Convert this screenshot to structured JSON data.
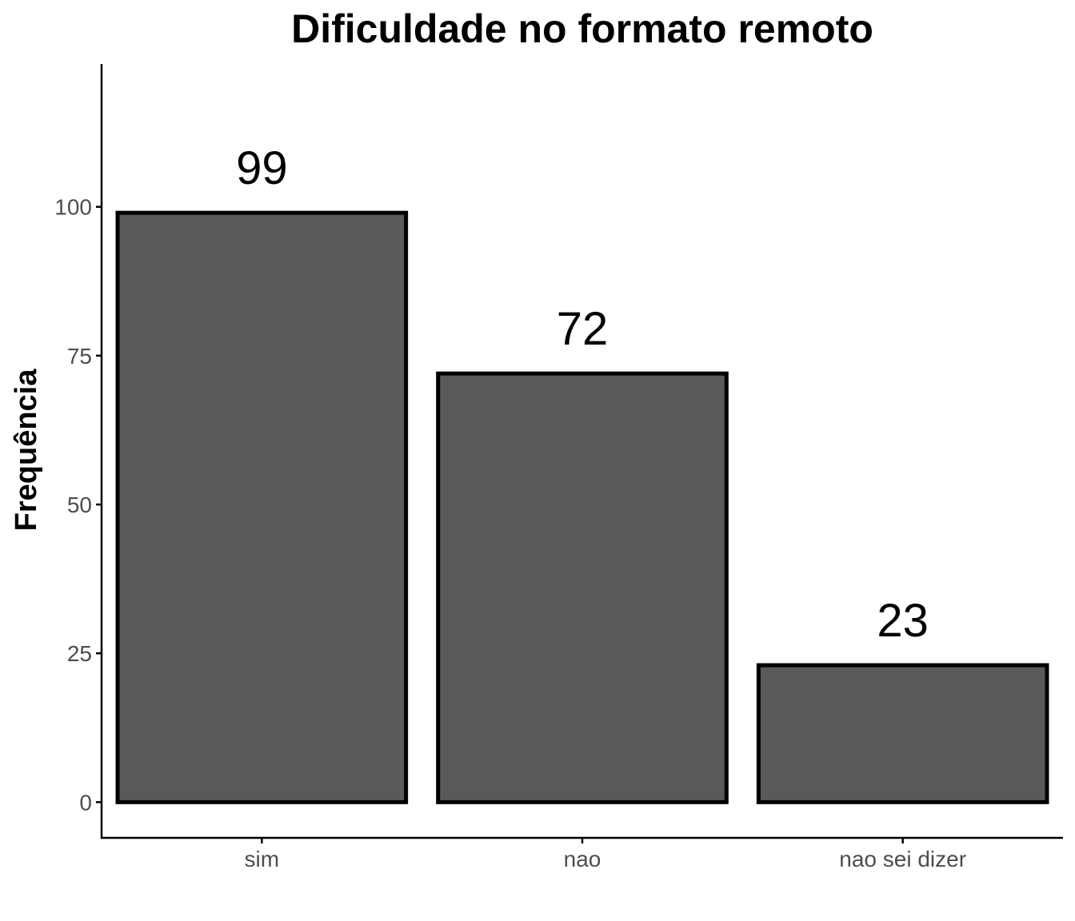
{
  "chart_data": {
    "type": "bar",
    "title": "Dificuldade no formato remoto",
    "xlabel": "",
    "ylabel": "Frequência",
    "categories": [
      "sim",
      "nao",
      "nao sei dizer"
    ],
    "values": [
      99,
      72,
      23
    ],
    "data_labels": [
      "99",
      "72",
      "23"
    ],
    "yticks": [
      0,
      25,
      50,
      75,
      100
    ],
    "ytick_labels": [
      "0",
      "25",
      "50",
      "75",
      "100"
    ],
    "ylim": [
      -6,
      124
    ],
    "grid": false,
    "legend": "none",
    "colors": {
      "bar_fill": "#595959",
      "bar_stroke": "#000000",
      "axis": "#000000",
      "tick_text": "#4d4d4d"
    }
  }
}
